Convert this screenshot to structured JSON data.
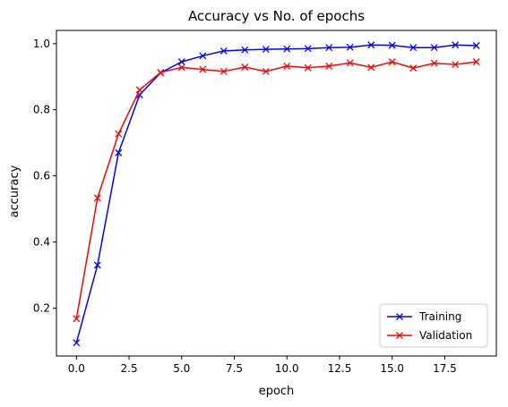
{
  "chart_data": {
    "type": "line",
    "title": "Accuracy vs No. of epochs",
    "xlabel": "epoch",
    "ylabel": "accuracy",
    "xlim": [
      -0.95,
      19.95
    ],
    "ylim": [
      0.055,
      1.04
    ],
    "xticks": [
      "0.0",
      "2.5",
      "5.0",
      "7.5",
      "10.0",
      "12.5",
      "15.0",
      "17.5"
    ],
    "xtick_values": [
      0,
      2.5,
      5,
      7.5,
      10,
      12.5,
      15,
      17.5
    ],
    "yticks": [
      "0.2",
      "0.4",
      "0.6",
      "0.8",
      "1.0"
    ],
    "ytick_values": [
      0.2,
      0.4,
      0.6,
      0.8,
      1.0
    ],
    "grid": false,
    "legend_position": "lower-right",
    "x": [
      0,
      1,
      2,
      3,
      4,
      5,
      6,
      7,
      8,
      9,
      10,
      11,
      12,
      13,
      14,
      15,
      16,
      17,
      18,
      19
    ],
    "series": [
      {
        "name": "Training",
        "color": "#0000ff",
        "marker": "x",
        "values": [
          0.095,
          0.33,
          0.67,
          0.845,
          0.912,
          0.945,
          0.963,
          0.978,
          0.981,
          0.983,
          0.984,
          0.985,
          0.988,
          0.989,
          0.996,
          0.995,
          0.988,
          0.988,
          0.996,
          0.994
        ]
      },
      {
        "name": "Validation",
        "color": "#ff0000",
        "marker": "x",
        "values": [
          0.168,
          0.533,
          0.727,
          0.86,
          0.913,
          0.928,
          0.922,
          0.916,
          0.929,
          0.916,
          0.932,
          0.927,
          0.932,
          0.942,
          0.928,
          0.945,
          0.926,
          0.941,
          0.937,
          0.945
        ]
      }
    ]
  }
}
